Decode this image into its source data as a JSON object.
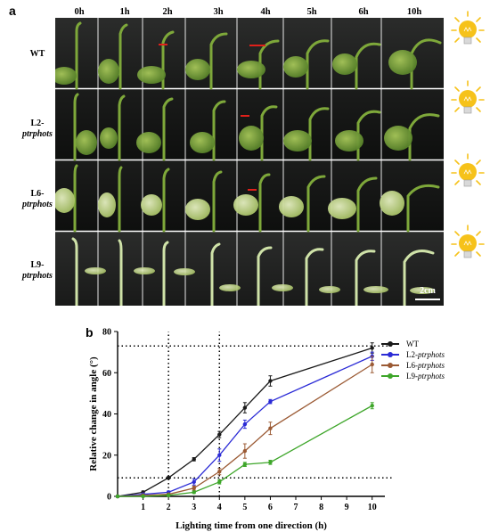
{
  "panel_a_label": "a",
  "panel_b_label": "b",
  "time_points": [
    "0h",
    "1h",
    "2h",
    "3h",
    "4h",
    "5h",
    "6h",
    "10h"
  ],
  "rows": [
    {
      "label_prefix": "WT",
      "label_gene": ""
    },
    {
      "label_prefix": "L2-",
      "label_gene": "ptrphots"
    },
    {
      "label_prefix": "L6-",
      "label_gene": "ptrphots"
    },
    {
      "label_prefix": "L9-",
      "label_gene": "ptrphots"
    }
  ],
  "scale_bar_label": "2cm",
  "colors": {
    "WT": "#1a1a1a",
    "L2": "#2b2bd6",
    "L6": "#9b5a34",
    "L9": "#3ea62a",
    "bulb": "#f6c21a",
    "marker": "#e0201a"
  },
  "chart_data": {
    "type": "line",
    "xlabel": "Lighting time from one direction (h)",
    "ylabel": "Relative change in angle (°)",
    "xlim": [
      0,
      10.5
    ],
    "ylim": [
      0,
      80
    ],
    "xticks": [
      "1",
      "2",
      "3",
      "4",
      "5",
      "6",
      "7",
      "8",
      "9",
      "10"
    ],
    "yticks": [
      "0",
      "20",
      "40",
      "60",
      "80"
    ],
    "legend_position": "top-right",
    "reference_lines": {
      "vertical": [
        2,
        4
      ],
      "horizontal": [
        9,
        73
      ]
    },
    "series": [
      {
        "name_prefix": "WT",
        "name_gene": "",
        "color": "#1a1a1a",
        "x": [
          0,
          1,
          2,
          3,
          4,
          5,
          6,
          10
        ],
        "y": [
          0,
          2,
          9,
          18,
          30,
          43,
          56,
          72
        ],
        "err": [
          0.5,
          0.6,
          0.6,
          0.8,
          1.5,
          2.5,
          2.5,
          2.5
        ]
      },
      {
        "name_prefix": "L2-",
        "name_gene": "ptrphots",
        "color": "#2b2bd6",
        "x": [
          0,
          1,
          2,
          3,
          4,
          5,
          6,
          10
        ],
        "y": [
          0,
          1,
          2,
          7,
          20,
          35,
          46,
          68
        ],
        "err": [
          0.4,
          0.5,
          0.6,
          1.5,
          3.0,
          2.0,
          1.0,
          2.0
        ]
      },
      {
        "name_prefix": "L6-",
        "name_gene": "ptrphots",
        "color": "#9b5a34",
        "x": [
          0,
          1,
          2,
          3,
          4,
          5,
          6,
          10
        ],
        "y": [
          0,
          0.5,
          1,
          4,
          12,
          22,
          33,
          64
        ],
        "err": [
          0.3,
          0.4,
          0.5,
          1.0,
          1.5,
          3.5,
          3.0,
          4.0
        ]
      },
      {
        "name_prefix": "L9-",
        "name_gene": "ptrphots",
        "color": "#3ea62a",
        "x": [
          0,
          1,
          2,
          3,
          4,
          5,
          6,
          10
        ],
        "y": [
          0,
          0,
          0.5,
          2,
          7,
          15.5,
          16.5,
          44
        ],
        "err": [
          0.3,
          0.3,
          0.4,
          0.6,
          1.0,
          1.0,
          1.0,
          1.5
        ]
      }
    ]
  }
}
